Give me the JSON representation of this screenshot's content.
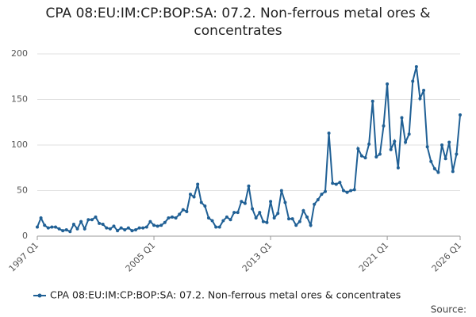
{
  "chart_data": {
    "type": "line",
    "title": "CPA 08:EU:IM:CP:BOP:SA: 07.2. Non-ferrous metal ores & concentrates",
    "categories": [
      "1997 Q1",
      null,
      null,
      null,
      null,
      null,
      null,
      null,
      null,
      null,
      null,
      null,
      null,
      null,
      null,
      null,
      null,
      null,
      null,
      null,
      null,
      null,
      null,
      null,
      null,
      null,
      null,
      null,
      null,
      null,
      null,
      null,
      "2005 Q1",
      null,
      null,
      null,
      null,
      null,
      null,
      null,
      null,
      null,
      null,
      null,
      null,
      null,
      null,
      null,
      null,
      null,
      null,
      null,
      null,
      null,
      null,
      null,
      null,
      null,
      null,
      null,
      null,
      null,
      null,
      null,
      "2013 Q1",
      null,
      null,
      null,
      null,
      null,
      null,
      null,
      null,
      null,
      null,
      null,
      null,
      null,
      null,
      null,
      null,
      null,
      null,
      null,
      null,
      null,
      null,
      null,
      null,
      null,
      null,
      null,
      null,
      null,
      null,
      null,
      "2021 Q1",
      null,
      null,
      null,
      null,
      null,
      null,
      null,
      null,
      null,
      null,
      null,
      null,
      null,
      null,
      null,
      null,
      null,
      null,
      null,
      "2026 Q1"
    ],
    "series": [
      {
        "name": "CPA 08:EU:IM:CP:BOP:SA: 07.2. Non-ferrous metal ores & concentrates",
        "color": "#206095",
        "values": [
          10,
          20,
          12,
          9,
          10,
          10,
          8,
          6,
          7,
          5,
          13,
          8,
          16,
          8,
          18,
          18,
          21,
          14,
          13,
          9,
          8,
          11,
          6,
          9,
          7,
          9,
          6,
          7,
          9,
          9,
          10,
          16,
          12,
          11,
          12,
          15,
          20,
          21,
          20,
          24,
          29,
          27,
          46,
          43,
          57,
          37,
          33,
          20,
          17,
          10,
          10,
          17,
          21,
          18,
          26,
          26,
          38,
          36,
          55,
          30,
          20,
          26,
          16,
          15,
          38,
          20,
          25,
          50,
          37,
          19,
          19,
          12,
          16,
          28,
          21,
          12,
          35,
          40,
          46,
          49,
          113,
          58,
          57,
          59,
          50,
          48,
          50,
          51,
          96,
          88,
          86,
          101,
          148,
          87,
          90,
          121,
          167,
          95,
          104,
          75,
          130,
          103,
          112,
          170,
          186,
          151,
          160,
          98,
          82,
          74,
          70,
          100,
          85,
          103,
          71,
          90,
          133
        ]
      }
    ],
    "ylim": [
      0,
      200
    ],
    "yticks": [
      0,
      50,
      100,
      150,
      200
    ],
    "grid": true,
    "source": "Source:"
  }
}
